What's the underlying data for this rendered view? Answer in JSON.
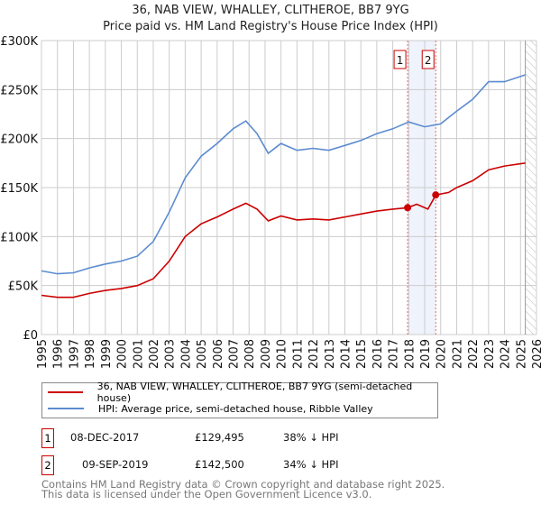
{
  "chart_data": {
    "type": "line",
    "title": "36, NAB VIEW, WHALLEY, CLITHEROE, BB7 9YG",
    "subtitle": "Price paid vs. HM Land Registry's House Price Index (HPI)",
    "ylim": [
      0,
      300000
    ],
    "xlim": [
      1995,
      2026
    ],
    "y_ticks": [
      "£0",
      "£50K",
      "£100K",
      "£150K",
      "£200K",
      "£250K",
      "£300K"
    ],
    "x_ticks": [
      "1995",
      "1996",
      "1997",
      "1998",
      "1999",
      "2000",
      "2001",
      "2002",
      "2003",
      "2004",
      "2005",
      "2006",
      "2007",
      "2008",
      "2009",
      "2010",
      "2011",
      "2012",
      "2013",
      "2014",
      "2015",
      "2016",
      "2017",
      "2018",
      "2019",
      "2020",
      "2021",
      "2022",
      "2023",
      "2024",
      "2025",
      "2026"
    ],
    "grid": true,
    "series": [
      {
        "name": "36, NAB VIEW, WHALLEY, CLITHEROE, BB7 9YG (semi-detached house)",
        "color": "#cc0000",
        "x": [
          1995,
          1996,
          1997,
          1998,
          1999,
          2000,
          2001,
          2002,
          2003,
          2004,
          2005,
          2006,
          2007,
          2007.8,
          2008.5,
          2009.2,
          2010,
          2011,
          2012,
          2013,
          2014,
          2015,
          2016,
          2017,
          2017.93,
          2018.5,
          2019.2,
          2019.69,
          2020.5,
          2021,
          2022,
          2023,
          2024,
          2025.3
        ],
        "y": [
          40000,
          38000,
          38000,
          42000,
          45000,
          47000,
          50000,
          57000,
          75000,
          100000,
          113000,
          120000,
          128000,
          134000,
          128000,
          116000,
          121000,
          117000,
          118000,
          117000,
          120000,
          123000,
          126000,
          128000,
          129495,
          133000,
          128000,
          142500,
          145000,
          150000,
          157000,
          168000,
          172000,
          175000
        ]
      },
      {
        "name": "HPI: Average price, semi-detached house, Ribble Valley",
        "color": "#5b8bd0",
        "x": [
          1995,
          1996,
          1997,
          1998,
          1999,
          2000,
          2001,
          2002,
          2003,
          2004,
          2005,
          2006,
          2007,
          2007.8,
          2008.5,
          2009.2,
          2010,
          2011,
          2012,
          2013,
          2014,
          2015,
          2016,
          2017,
          2018,
          2019,
          2020,
          2021,
          2022,
          2023,
          2024,
          2025.3
        ],
        "y": [
          65000,
          62000,
          63000,
          68000,
          72000,
          75000,
          80000,
          95000,
          125000,
          160000,
          182000,
          195000,
          210000,
          218000,
          205000,
          185000,
          195000,
          188000,
          190000,
          188000,
          193000,
          198000,
          205000,
          210000,
          217000,
          212000,
          215000,
          228000,
          240000,
          258000,
          258000,
          265000
        ]
      }
    ],
    "annotations": [
      {
        "label": "1",
        "x": 2017.93
      },
      {
        "label": "2",
        "x": 2019.69
      }
    ],
    "forecast_start": 2025.3
  },
  "legend": [
    "36, NAB VIEW, WHALLEY, CLITHEROE, BB7 9YG (semi-detached house)",
    "HPI: Average price, semi-detached house, Ribble Valley"
  ],
  "transactions": [
    {
      "num": "1",
      "date": "08-DEC-2017",
      "price": "£129,495",
      "delta": "38% ↓ HPI"
    },
    {
      "num": "2",
      "date": "09-SEP-2019",
      "price": "£142,500",
      "delta": "34% ↓ HPI"
    }
  ],
  "footer": [
    "Contains HM Land Registry data © Crown copyright and database right 2025.",
    "This data is licensed under the Open Government Licence v3.0."
  ]
}
